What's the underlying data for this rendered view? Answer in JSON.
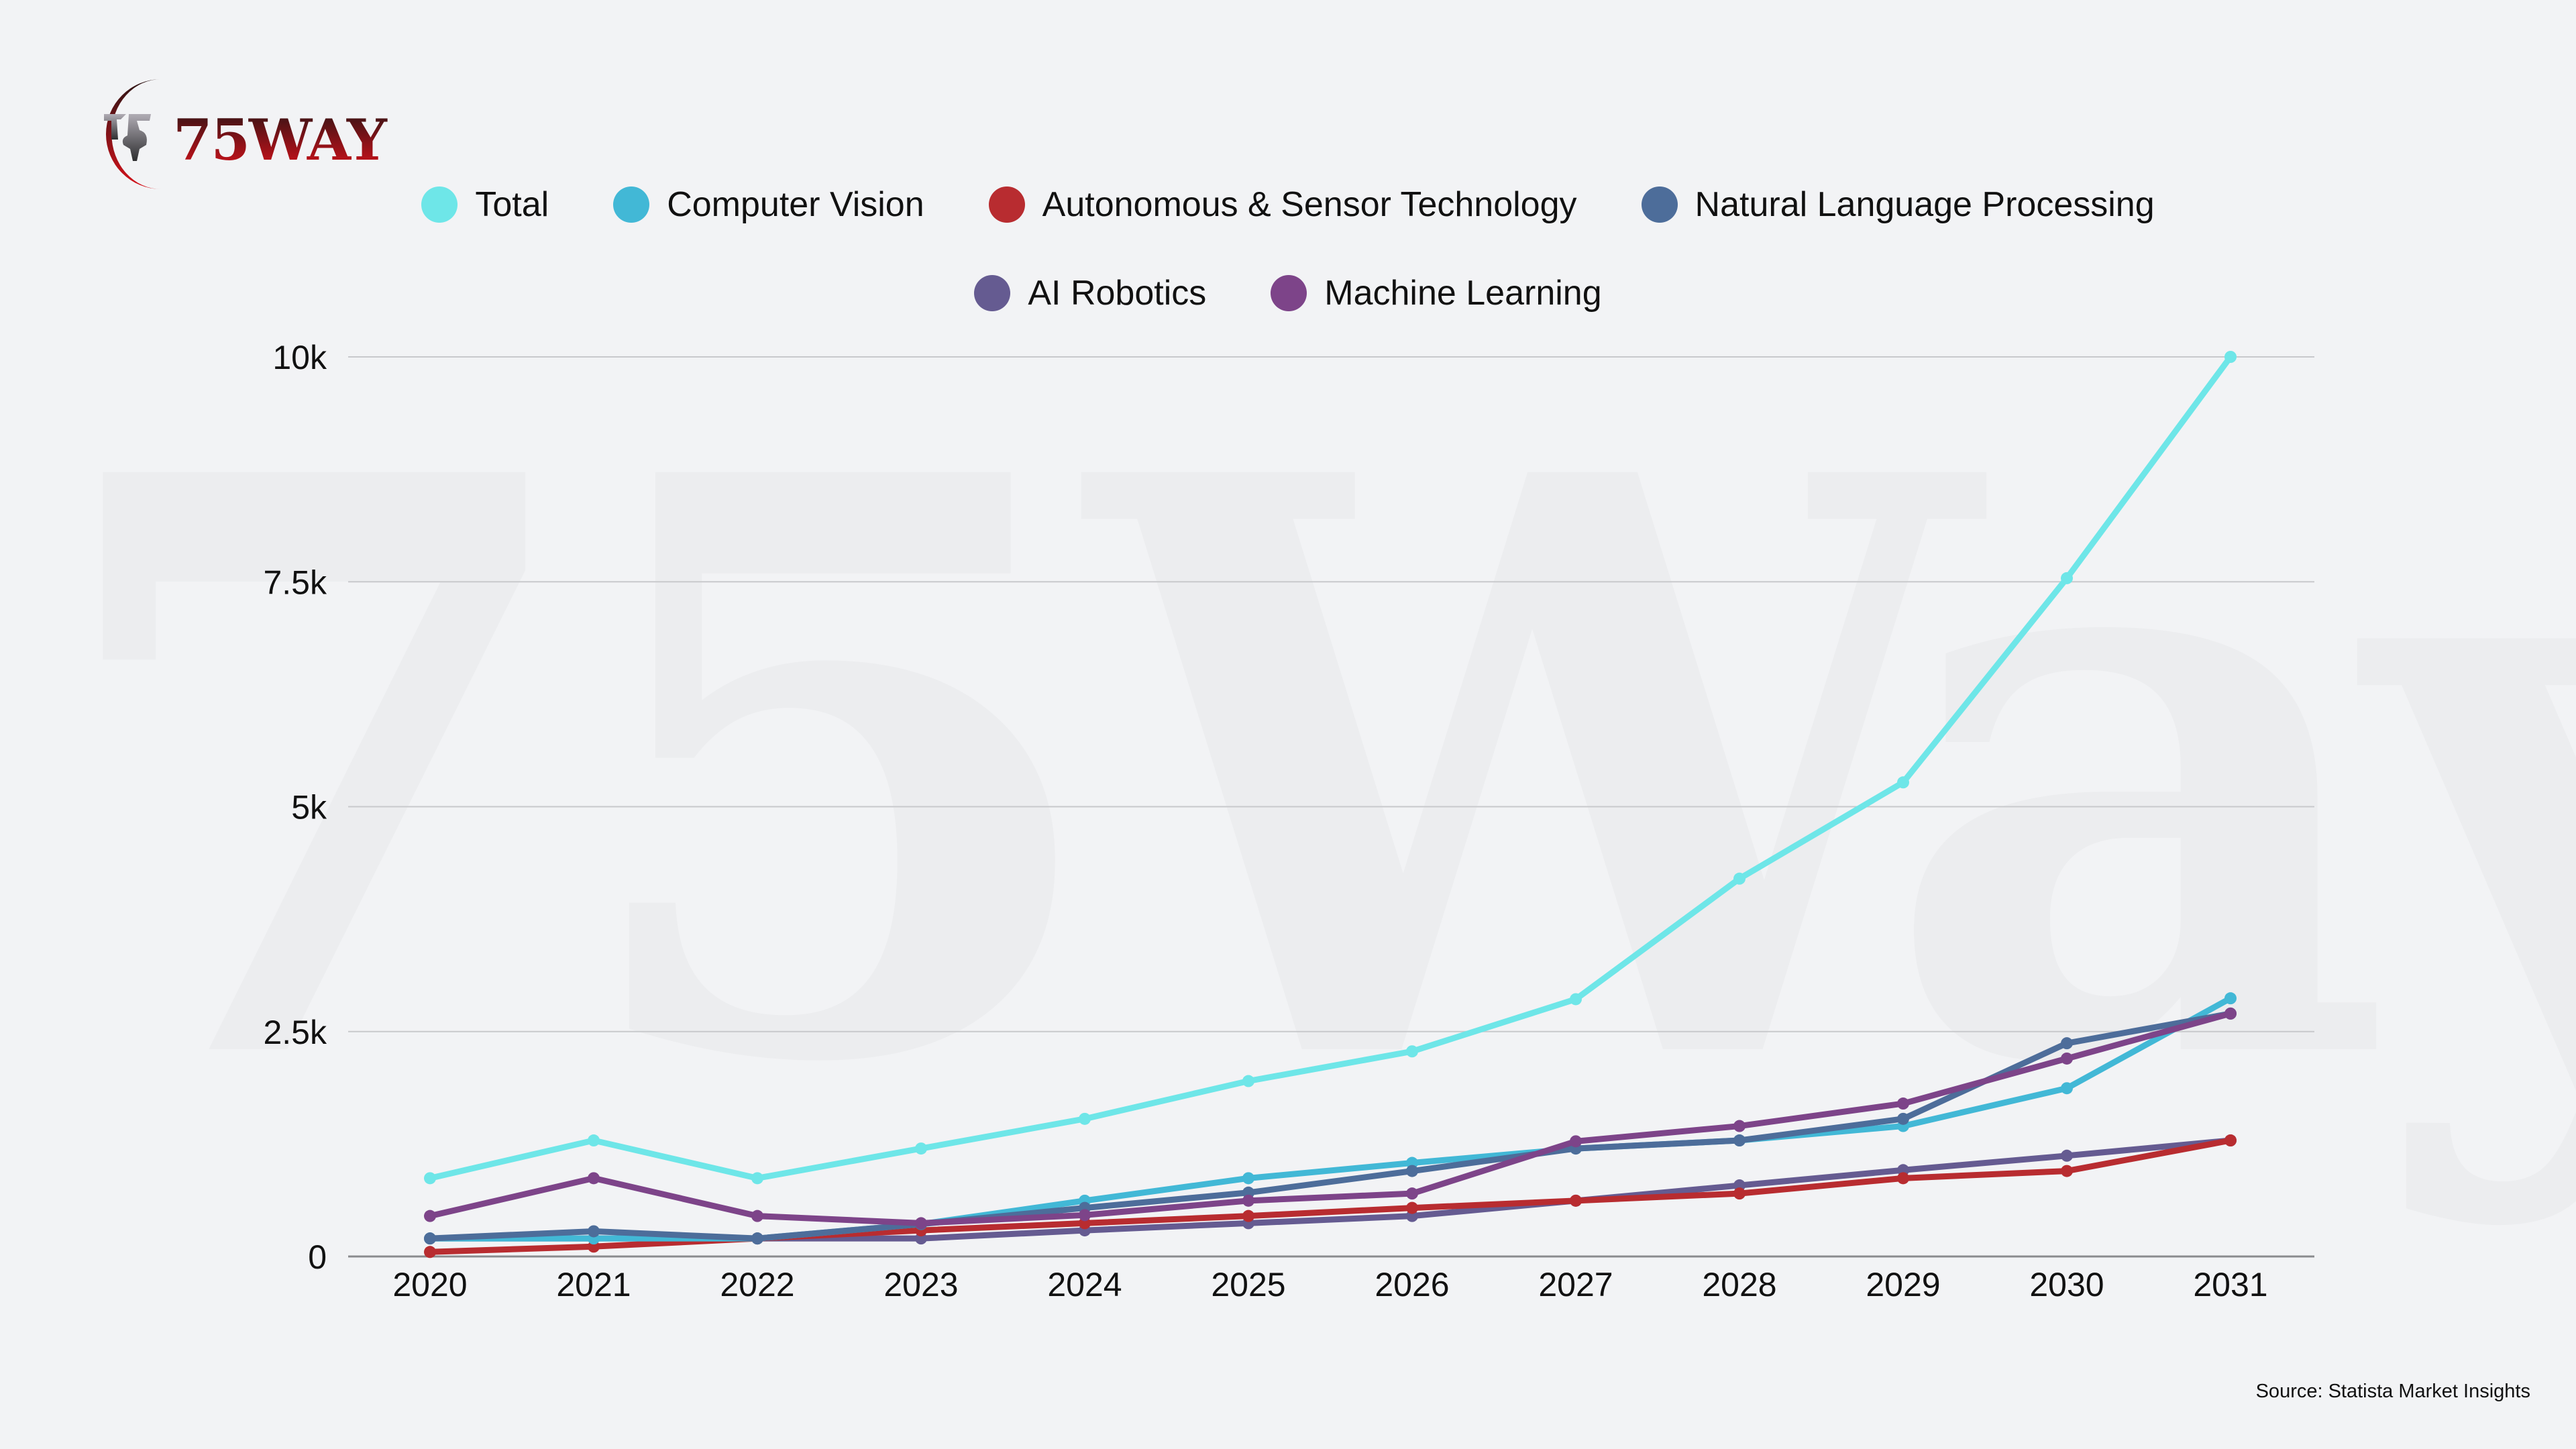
{
  "brand": {
    "logo_text": "75WAY",
    "watermark_text": "75Way"
  },
  "colors": {
    "background": "#f2f3f5",
    "grid": "#c8c9cc",
    "axis": "#8a8b8e"
  },
  "chart_data": {
    "type": "line",
    "title": "",
    "xlabel": "",
    "ylabel": "",
    "x": [
      "2020",
      "2021",
      "2022",
      "2023",
      "2024",
      "2025",
      "2026",
      "2027",
      "2028",
      "2029",
      "2030",
      "2031"
    ],
    "ylim": [
      0,
      10000
    ],
    "yticks": [
      {
        "value": 0,
        "label": "0"
      },
      {
        "value": 2500,
        "label": "2.5k"
      },
      {
        "value": 5000,
        "label": "5k"
      },
      {
        "value": 7500,
        "label": "7.5k"
      },
      {
        "value": 10000,
        "label": "10k"
      }
    ],
    "grid": true,
    "legend_position": "top-center",
    "series": [
      {
        "name": "Total",
        "color": "#6ee6e8",
        "values": [
          870,
          1290,
          870,
          1200,
          1530,
          1950,
          2280,
          2860,
          4200,
          5270,
          7540,
          10000
        ]
      },
      {
        "name": "Computer Vision",
        "color": "#42b8d6",
        "values": [
          200,
          200,
          200,
          360,
          620,
          870,
          1040,
          1200,
          1290,
          1450,
          1870,
          2870
        ]
      },
      {
        "name": "Autonomous & Sensor Technology",
        "color": "#b82c30",
        "values": [
          50,
          110,
          200,
          290,
          370,
          450,
          540,
          620,
          700,
          870,
          950,
          1290
        ]
      },
      {
        "name": "Natural Language Processing",
        "color": "#4d6d9a",
        "values": [
          200,
          280,
          200,
          360,
          540,
          710,
          950,
          1200,
          1290,
          1530,
          2370,
          2700
        ]
      },
      {
        "name": "AI Robotics",
        "color": "#655b91",
        "values": [
          200,
          200,
          200,
          200,
          290,
          370,
          450,
          620,
          790,
          960,
          1120,
          1290
        ]
      },
      {
        "name": "Machine Learning",
        "color": "#7d4489",
        "values": [
          450,
          870,
          450,
          370,
          460,
          620,
          700,
          1280,
          1450,
          1700,
          2200,
          2700
        ]
      }
    ],
    "legend_rows": [
      [
        0,
        1,
        2,
        3
      ],
      [
        4,
        5
      ]
    ]
  },
  "legend": {
    "items": [
      {
        "label": "Total",
        "color": "#6ee6e8"
      },
      {
        "label": "Computer Vision",
        "color": "#42b8d6"
      },
      {
        "label": "Autonomous & Sensor Technology",
        "color": "#b82c30"
      },
      {
        "label": "Natural Language Processing",
        "color": "#4d6d9a"
      },
      {
        "label": "AI Robotics",
        "color": "#655b91"
      },
      {
        "label": "Machine Learning",
        "color": "#7d4489"
      }
    ]
  },
  "footer": {
    "source": "Source: Statista Market Insights"
  }
}
